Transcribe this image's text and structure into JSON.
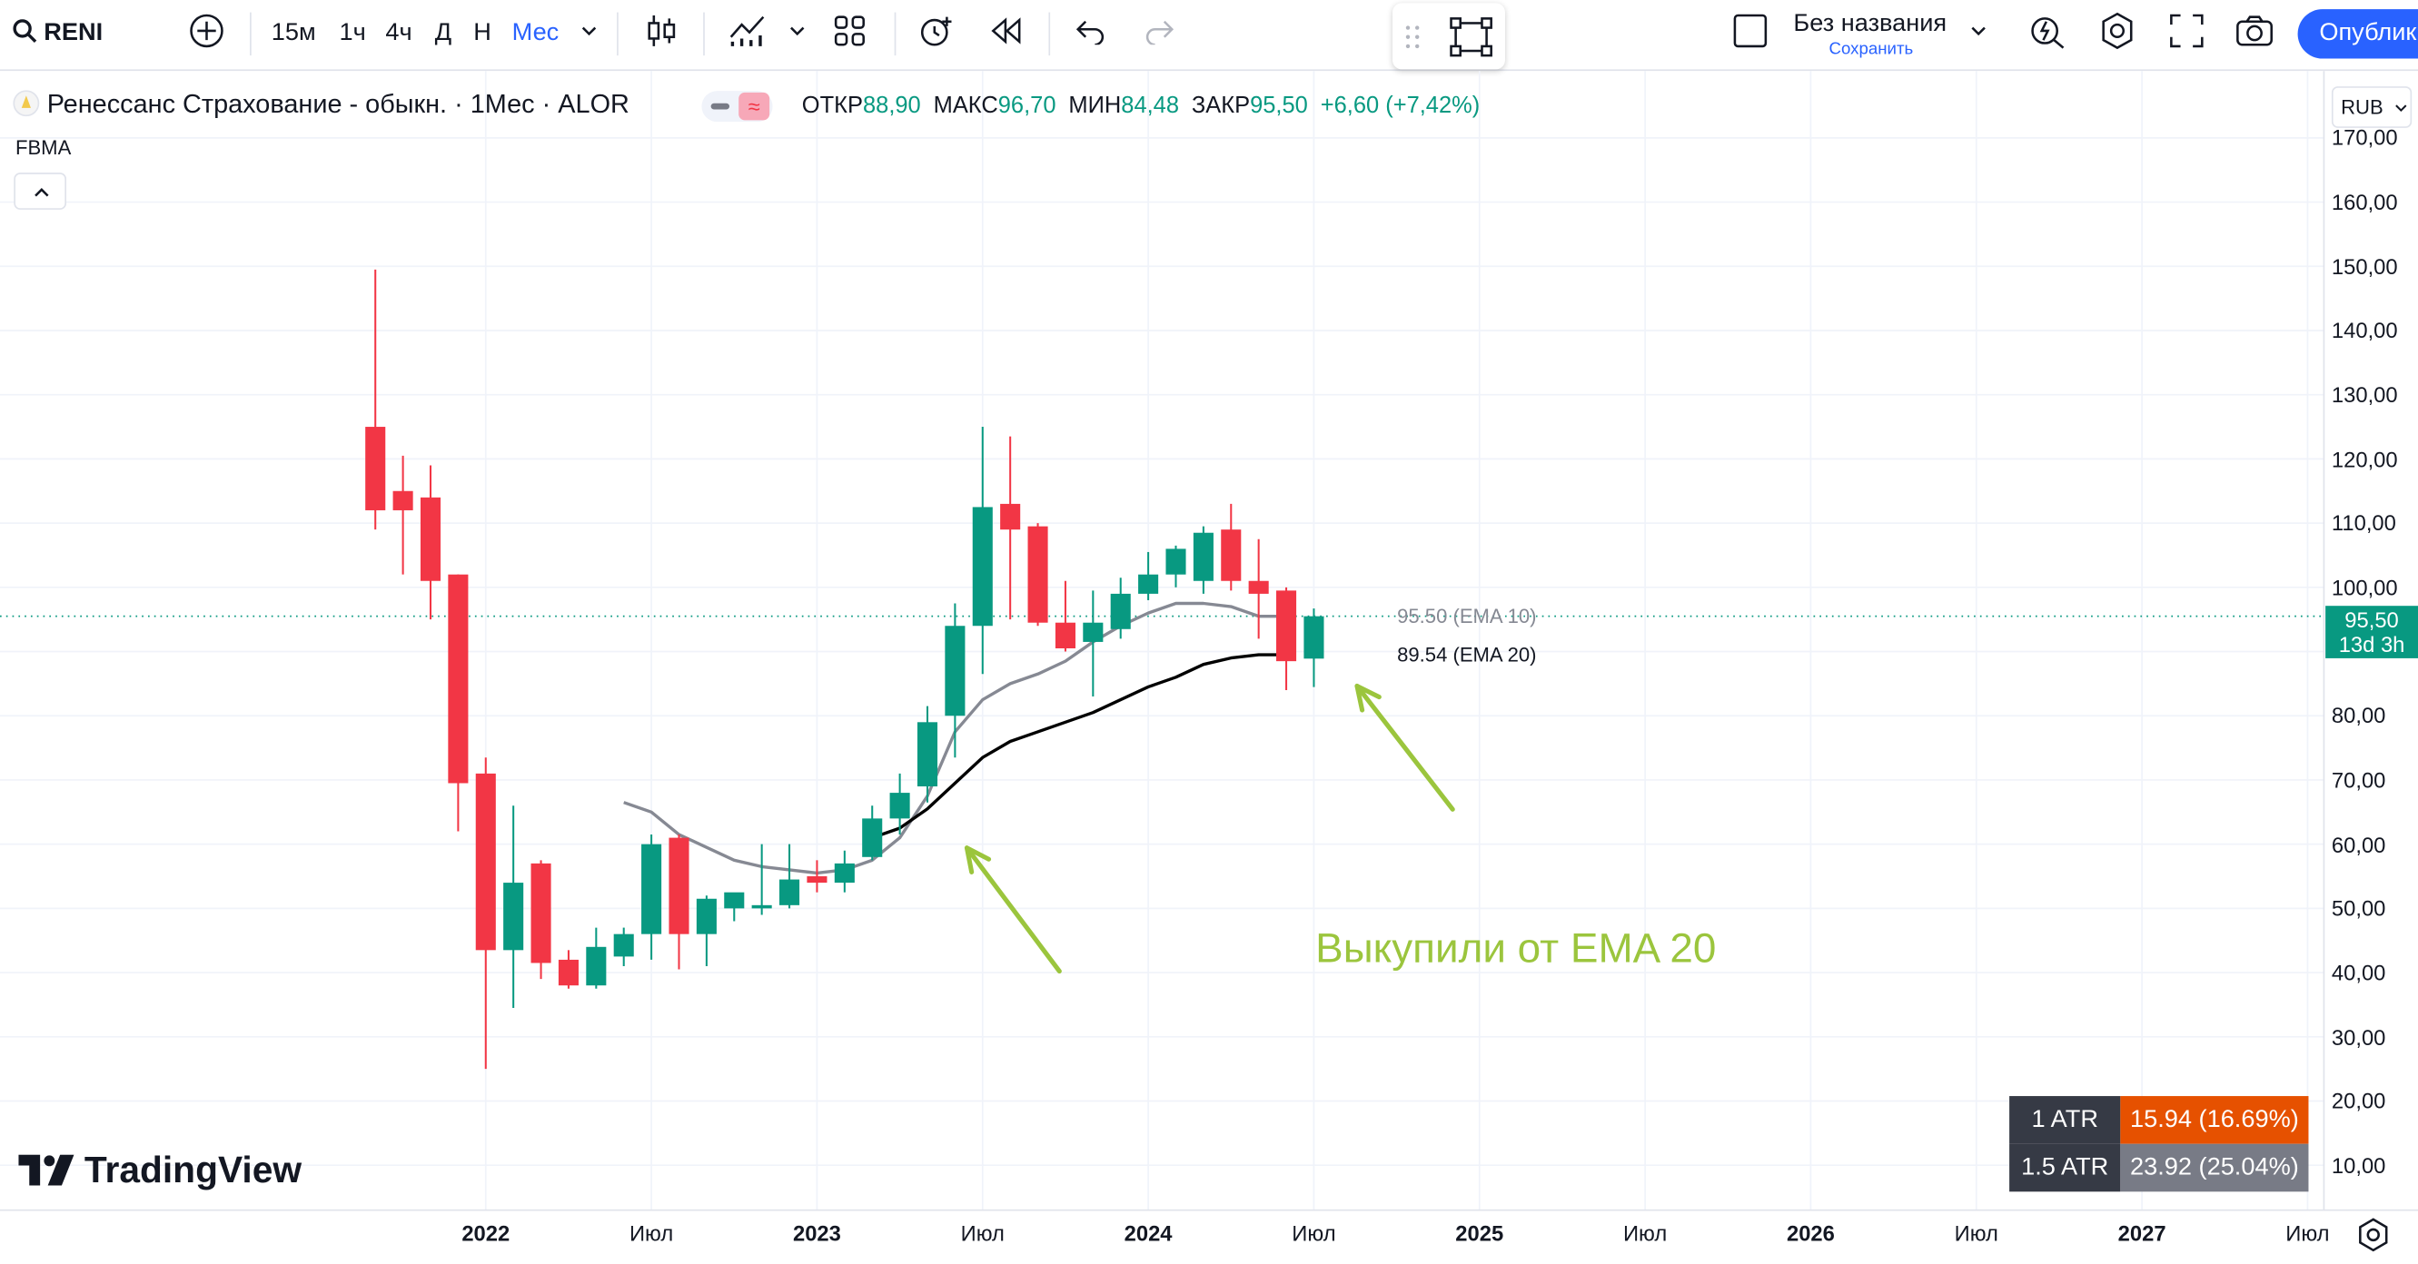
{
  "toolbar": {
    "symbol": "RENI",
    "intervals": [
      "15м",
      "1ч",
      "4ч",
      "Д",
      "Н",
      "Мес"
    ],
    "active_interval": "Мес",
    "layout_name": "Без названия",
    "save_label": "Сохранить",
    "publish_label": "Опублик"
  },
  "legend": {
    "title": "Ренессанс Страхование - обыкн. · 1Мес · ALOR",
    "open_label": "ОТКР",
    "open": "88,90",
    "high_label": "МАКС",
    "high": "96,70",
    "low_label": "МИН",
    "low": "84,48",
    "close_label": "ЗАКР",
    "close": "95,50",
    "change": "+6,60 (+7,42%)",
    "indicator": "FBMA"
  },
  "currency": "RUB",
  "brand": "TradingView",
  "colors": {
    "up": "#089981",
    "down": "#f23645",
    "ema10": "#868993",
    "ema20": "#000000",
    "annotation": "#9bc53d",
    "accent": "#2962ff"
  },
  "chart_data": {
    "type": "candlestick",
    "y_axis": {
      "min": 10,
      "max": 170,
      "ticks": [
        "170,00",
        "160,00",
        "150,00",
        "140,00",
        "130,00",
        "120,00",
        "110,00",
        "100,00",
        "80,00",
        "70,00",
        "60,00",
        "50,00",
        "40,00",
        "30,00",
        "20,00",
        "10,00"
      ]
    },
    "x_axis": {
      "ticks": [
        {
          "label": "2022",
          "date": "2022-01",
          "bold": true
        },
        {
          "label": "Июл",
          "date": "2022-07",
          "bold": false
        },
        {
          "label": "2023",
          "date": "2023-01",
          "bold": true
        },
        {
          "label": "Июл",
          "date": "2023-07",
          "bold": false
        },
        {
          "label": "2024",
          "date": "2024-01",
          "bold": true
        },
        {
          "label": "Июл",
          "date": "2024-07",
          "bold": false
        },
        {
          "label": "2025",
          "date": "2025-01",
          "bold": true
        },
        {
          "label": "Июл",
          "date": "2025-07",
          "bold": false
        },
        {
          "label": "2026",
          "date": "2026-01",
          "bold": true
        },
        {
          "label": "Июл",
          "date": "2026-07",
          "bold": false
        },
        {
          "label": "2027",
          "date": "2027-01",
          "bold": true
        },
        {
          "label": "Июл",
          "date": "2027-07",
          "bold": false
        }
      ]
    },
    "candles": [
      {
        "date": "2021-09",
        "o": 125,
        "h": 149.5,
        "l": 109,
        "c": 112
      },
      {
        "date": "2021-10",
        "o": 115,
        "h": 120.5,
        "l": 102,
        "c": 112
      },
      {
        "date": "2021-11",
        "o": 114,
        "h": 119,
        "l": 95,
        "c": 101
      },
      {
        "date": "2021-12",
        "o": 102,
        "h": 102,
        "l": 62,
        "c": 69.5
      },
      {
        "date": "2022-01",
        "o": 71,
        "h": 73.5,
        "l": 25,
        "c": 43.5
      },
      {
        "date": "2022-02",
        "o": 43.5,
        "h": 66,
        "l": 34.5,
        "c": 54
      },
      {
        "date": "2022-03",
        "o": 57,
        "h": 57.5,
        "l": 39,
        "c": 41.5
      },
      {
        "date": "2022-04",
        "o": 42,
        "h": 43.5,
        "l": 37.5,
        "c": 38
      },
      {
        "date": "2022-05",
        "o": 38,
        "h": 47,
        "l": 37.5,
        "c": 44
      },
      {
        "date": "2022-06",
        "o": 42.5,
        "h": 47,
        "l": 41,
        "c": 46
      },
      {
        "date": "2022-07",
        "o": 46,
        "h": 61.5,
        "l": 42,
        "c": 60
      },
      {
        "date": "2022-08",
        "o": 61,
        "h": 61.5,
        "l": 40.5,
        "c": 46
      },
      {
        "date": "2022-09",
        "o": 46,
        "h": 52,
        "l": 41,
        "c": 51.5
      },
      {
        "date": "2022-10",
        "o": 50,
        "h": 52,
        "l": 48,
        "c": 52.5
      },
      {
        "date": "2022-11",
        "o": 50,
        "h": 60,
        "l": 49,
        "c": 50.5
      },
      {
        "date": "2022-12",
        "o": 50.5,
        "h": 60,
        "l": 50,
        "c": 54.5
      },
      {
        "date": "2023-01",
        "o": 55,
        "h": 57.5,
        "l": 52.5,
        "c": 54
      },
      {
        "date": "2023-02",
        "o": 54,
        "h": 59,
        "l": 52.5,
        "c": 57
      },
      {
        "date": "2023-03",
        "o": 58,
        "h": 66,
        "l": 57.5,
        "c": 64
      },
      {
        "date": "2023-04",
        "o": 64,
        "h": 71,
        "l": 61.5,
        "c": 68
      },
      {
        "date": "2023-05",
        "o": 69,
        "h": 81.5,
        "l": 66.5,
        "c": 79
      },
      {
        "date": "2023-06",
        "o": 80,
        "h": 97.5,
        "l": 73.5,
        "c": 94
      },
      {
        "date": "2023-07",
        "o": 94,
        "h": 125,
        "l": 86.5,
        "c": 112.5
      },
      {
        "date": "2023-08",
        "o": 113,
        "h": 123.5,
        "l": 95,
        "c": 109
      },
      {
        "date": "2023-09",
        "o": 109.5,
        "h": 110,
        "l": 94,
        "c": 94.5
      },
      {
        "date": "2023-10",
        "o": 94.5,
        "h": 101,
        "l": 90,
        "c": 90.5
      },
      {
        "date": "2023-11",
        "o": 91.5,
        "h": 99.5,
        "l": 83,
        "c": 94.5
      },
      {
        "date": "2023-12",
        "o": 93.5,
        "h": 101.5,
        "l": 92,
        "c": 99
      },
      {
        "date": "2024-01",
        "o": 99,
        "h": 105.5,
        "l": 98,
        "c": 102
      },
      {
        "date": "2024-02",
        "o": 102,
        "h": 106.5,
        "l": 100,
        "c": 106
      },
      {
        "date": "2024-03",
        "o": 101,
        "h": 109.5,
        "l": 99,
        "c": 108.5
      },
      {
        "date": "2024-04",
        "o": 109,
        "h": 113,
        "l": 99.5,
        "c": 101
      },
      {
        "date": "2024-05",
        "o": 101,
        "h": 107.5,
        "l": 92,
        "c": 99
      },
      {
        "date": "2024-06",
        "o": 99.5,
        "h": 100,
        "l": 84,
        "c": 88.5
      },
      {
        "date": "2024-07",
        "o": 88.9,
        "h": 96.7,
        "l": 84.48,
        "c": 95.5
      }
    ],
    "series": [
      {
        "name": "EMA 10",
        "label": "95.50 (EMA 10)",
        "points": [
          [
            "2022-06",
            66.5
          ],
          [
            "2022-07",
            65
          ],
          [
            "2022-08",
            61.5
          ],
          [
            "2022-09",
            59.5
          ],
          [
            "2022-10",
            57.5
          ],
          [
            "2022-11",
            56.5
          ],
          [
            "2022-12",
            56
          ],
          [
            "2023-01",
            55.5
          ],
          [
            "2023-02",
            56
          ],
          [
            "2023-03",
            57.5
          ],
          [
            "2023-04",
            61
          ],
          [
            "2023-05",
            67.5
          ],
          [
            "2023-06",
            77.5
          ],
          [
            "2023-07",
            82.5
          ],
          [
            "2023-08",
            85
          ],
          [
            "2023-09",
            86.5
          ],
          [
            "2023-10",
            88.5
          ],
          [
            "2023-11",
            91.5
          ],
          [
            "2023-12",
            94
          ],
          [
            "2024-01",
            96
          ],
          [
            "2024-02",
            97.5
          ],
          [
            "2024-03",
            97.5
          ],
          [
            "2024-04",
            97
          ],
          [
            "2024-05",
            95.5
          ],
          [
            "2024-06",
            95.5
          ]
        ]
      },
      {
        "name": "EMA 20",
        "label": "89.54 (EMA 20)",
        "points": [
          [
            "2023-03",
            61
          ],
          [
            "2023-04",
            62.5
          ],
          [
            "2023-05",
            65.5
          ],
          [
            "2023-06",
            69.5
          ],
          [
            "2023-07",
            73.5
          ],
          [
            "2023-08",
            76
          ],
          [
            "2023-09",
            77.5
          ],
          [
            "2023-10",
            79
          ],
          [
            "2023-11",
            80.5
          ],
          [
            "2023-12",
            82.5
          ],
          [
            "2024-01",
            84.5
          ],
          [
            "2024-02",
            86
          ],
          [
            "2024-03",
            88
          ],
          [
            "2024-04",
            89
          ],
          [
            "2024-05",
            89.5
          ],
          [
            "2024-06",
            89.5
          ]
        ]
      }
    ],
    "last_price": {
      "value": 95.5,
      "label": "95,50",
      "countdown": "13d 3h"
    },
    "annotation": {
      "text": "Выкупили от EMA 20"
    },
    "atr_table": [
      {
        "label": "1 ATR",
        "value": "15.94 (16.69%)"
      },
      {
        "label": "1.5 ATR",
        "value": "23.92 (25.04%)"
      }
    ]
  }
}
